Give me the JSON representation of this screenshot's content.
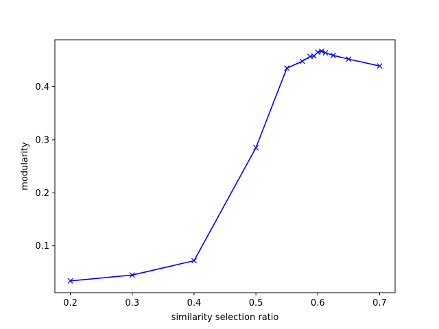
{
  "chart_data": {
    "type": "line",
    "title": "",
    "xlabel": "similarity selection ratio",
    "ylabel": "modularity",
    "xlim": [
      0.175,
      0.725
    ],
    "ylim": [
      0.0118,
      0.4885
    ],
    "xticks": [
      "0.2",
      "0.3",
      "0.4",
      "0.5",
      "0.6",
      "0.7"
    ],
    "yticks": [
      "0.1",
      "0.2",
      "0.3",
      "0.4"
    ],
    "grid": false,
    "series": [
      {
        "color": "#0000ff",
        "marker": "x",
        "x": [
          0.2,
          0.3,
          0.4,
          0.5,
          0.55,
          0.575,
          0.5875,
          0.59375,
          0.6,
          0.60625,
          0.6125,
          0.625,
          0.65,
          0.7
        ],
        "y": [
          0.034,
          0.045,
          0.072,
          0.285,
          0.435,
          0.448,
          0.457,
          0.458,
          0.465,
          0.467,
          0.464,
          0.459,
          0.452,
          0.439
        ]
      }
    ]
  }
}
